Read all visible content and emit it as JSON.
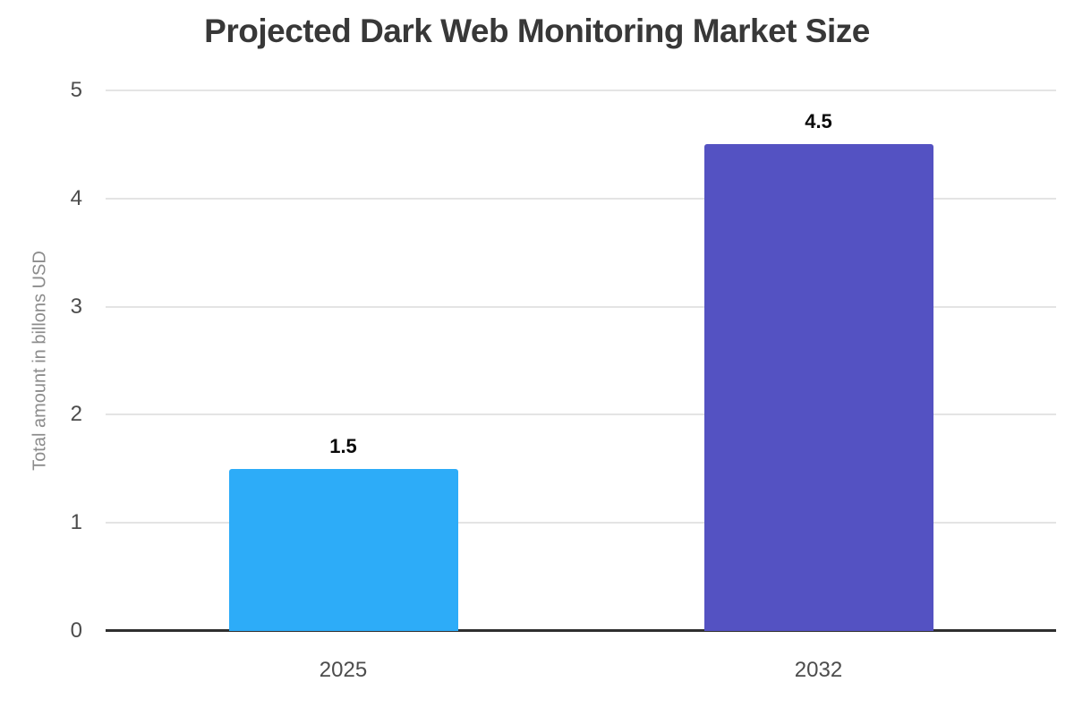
{
  "chart_data": {
    "type": "bar",
    "title": "Projected Dark Web Monitoring Market Size",
    "categories": [
      "2025",
      "2032"
    ],
    "values": [
      1.5,
      4.5
    ],
    "value_labels": [
      "1.5",
      "4.5"
    ],
    "bar_colors": [
      "#2DACF8",
      "#5452C2"
    ],
    "xlabel": "",
    "ylabel": "Total amount in billons USD",
    "ylim": [
      0,
      5
    ],
    "yticks": [
      0,
      1,
      2,
      3,
      4,
      5
    ],
    "grid": true,
    "legend": false,
    "colors": {
      "background": "#ffffff",
      "title": "#383838",
      "tick_label": "#4c4c4c",
      "axis_line": "#2f2f2f",
      "gridline": "#e4e4e4",
      "ylabel_text": "#8c8c8c",
      "value_label": "#0a0a0a"
    }
  }
}
